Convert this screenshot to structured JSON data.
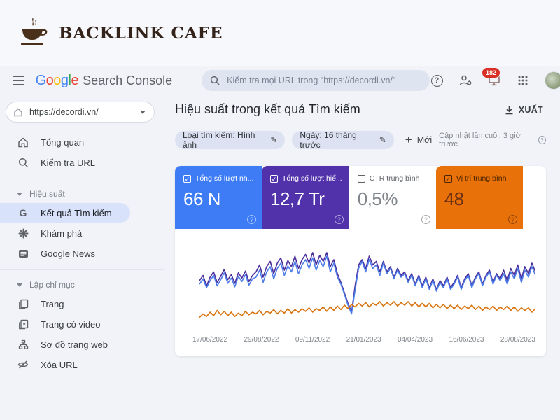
{
  "brand": {
    "name": "BACKLINK CAFE",
    "text_color": "#33231a",
    "cup_color": "#4a2f1b"
  },
  "header": {
    "google_letters": [
      {
        "ch": "G",
        "color": "#4285F4"
      },
      {
        "ch": "o",
        "color": "#EA4335"
      },
      {
        "ch": "o",
        "color": "#FBBC05"
      },
      {
        "ch": "g",
        "color": "#4285F4"
      },
      {
        "ch": "l",
        "color": "#34A853"
      },
      {
        "ch": "e",
        "color": "#EA4335"
      }
    ],
    "product_suffix": "Search Console",
    "search": {
      "placeholder": "Kiểm tra mọi URL trong \"https://decordi.vn/\""
    },
    "notifications_count": "182"
  },
  "sidebar": {
    "property": {
      "value": "https://decordi.vn/"
    },
    "top_items": [
      {
        "label": "Tổng quan"
      },
      {
        "label": "Kiểm tra URL"
      }
    ],
    "sections": [
      {
        "title": "Hiệu suất",
        "items": [
          {
            "label": "Kết quả Tìm kiếm",
            "selected": true
          },
          {
            "label": "Khám phá",
            "selected": false
          },
          {
            "label": "Google News",
            "selected": false
          }
        ]
      },
      {
        "title": "Lập chỉ mục",
        "items": [
          {
            "label": "Trang",
            "selected": false
          },
          {
            "label": "Trang có video",
            "selected": false
          },
          {
            "label": "Sơ đồ trang web",
            "selected": false
          },
          {
            "label": "Xóa URL",
            "selected": false
          }
        ]
      }
    ]
  },
  "main": {
    "title": "Hiệu suất trong kết quả Tìm kiếm",
    "export_label": "XUẤT",
    "filters": {
      "chips": [
        {
          "label": "Loại tìm kiếm: Hình ảnh"
        },
        {
          "label": "Ngày: 16 tháng trước"
        }
      ],
      "new_label": "Mới",
      "last_updated": "Cập nhật lần cuối: 3 giờ trước"
    },
    "metrics": [
      {
        "label": "Tổng số lượt nh...",
        "value": "66 N",
        "bg": "#3d7cf5",
        "label_color": "#ffffff",
        "value_color": "#ffffff",
        "checked": true
      },
      {
        "label": "Tổng số lượt hiể...",
        "value": "12,7 Tr",
        "bg": "#5232ab",
        "label_color": "#ffffff",
        "value_color": "#ffffff",
        "checked": true
      },
      {
        "label": "CTR trung bình",
        "value": "0,5%",
        "bg": "#ffffff",
        "label_color": "#5f6368",
        "value_color": "#80868b",
        "checked": false
      },
      {
        "label": "Vị trí trung bình",
        "value": "48",
        "bg": "#e8710a",
        "label_color": "#4a2500",
        "value_color": "#6b2f10",
        "checked": true
      }
    ]
  },
  "chart_data": {
    "type": "line",
    "title": "Hiệu suất trong kết quả Tìm kiếm",
    "y_axis": "hidden",
    "values_unit": "percent-of-plot-height",
    "x_tick_labels": [
      "17/06/2022",
      "29/08/2022",
      "09/11/2022",
      "21/01/2023",
      "04/04/2023",
      "16/06/2023",
      "28/08/2023"
    ],
    "series": [
      {
        "name": "Tổng số lượt hiển thị",
        "color": "#4a2f9c",
        "values": [
          56,
          62,
          50,
          60,
          66,
          54,
          61,
          69,
          57,
          63,
          53,
          65,
          59,
          67,
          55,
          62,
          66,
          74,
          60,
          72,
          78,
          64,
          76,
          82,
          68,
          79,
          72,
          84,
          70,
          80,
          86,
          76,
          88,
          74,
          85,
          78,
          88,
          72,
          80,
          64,
          54,
          42,
          30,
          20,
          50,
          74,
          80,
          70,
          84,
          74,
          78,
          66,
          78,
          66,
          72,
          60,
          70,
          62,
          66,
          56,
          64,
          52,
          62,
          50,
          60,
          48,
          58,
          46,
          56,
          50,
          60,
          48,
          54,
          62,
          48,
          58,
          64,
          50,
          60,
          66,
          52,
          62,
          68,
          54,
          64,
          58,
          68,
          56,
          70,
          62,
          74,
          58,
          72,
          64,
          76,
          66
        ]
      },
      {
        "name": "Tổng số lượt nhấp",
        "color": "#4b7be8",
        "values": [
          52,
          58,
          48,
          56,
          62,
          50,
          57,
          65,
          53,
          59,
          49,
          61,
          55,
          63,
          51,
          58,
          60,
          68,
          54,
          66,
          72,
          58,
          70,
          76,
          62,
          73,
          66,
          78,
          64,
          74,
          80,
          70,
          82,
          68,
          79,
          72,
          84,
          66,
          76,
          60,
          52,
          40,
          28,
          18,
          45,
          70,
          78,
          66,
          80,
          70,
          74,
          62,
          76,
          64,
          70,
          58,
          68,
          60,
          64,
          54,
          62,
          50,
          60,
          48,
          58,
          46,
          56,
          44,
          54,
          48,
          58,
          46,
          52,
          60,
          46,
          56,
          62,
          48,
          58,
          64,
          50,
          60,
          66,
          52,
          62,
          56,
          64,
          52,
          66,
          58,
          70,
          54,
          68,
          60,
          72,
          62
        ]
      },
      {
        "name": "Vị trí trung bình",
        "color": "#d9730d",
        "values": [
          14,
          18,
          15,
          20,
          16,
          22,
          17,
          21,
          16,
          20,
          15,
          19,
          16,
          21,
          17,
          20,
          18,
          22,
          17,
          21,
          19,
          23,
          18,
          22,
          19,
          24,
          19,
          23,
          20,
          24,
          21,
          25,
          20,
          24,
          22,
          26,
          21,
          26,
          22,
          27,
          23,
          28,
          24,
          29,
          26,
          30,
          27,
          31,
          26,
          30,
          28,
          32,
          27,
          31,
          28,
          32,
          27,
          31,
          28,
          32,
          27,
          31,
          26,
          30,
          26,
          30,
          25,
          29,
          25,
          29,
          24,
          28,
          24,
          28,
          23,
          27,
          24,
          28,
          23,
          27,
          22,
          26,
          23,
          27,
          22,
          26,
          23,
          27,
          22,
          26,
          21,
          25,
          22,
          25,
          20,
          24
        ]
      }
    ]
  }
}
